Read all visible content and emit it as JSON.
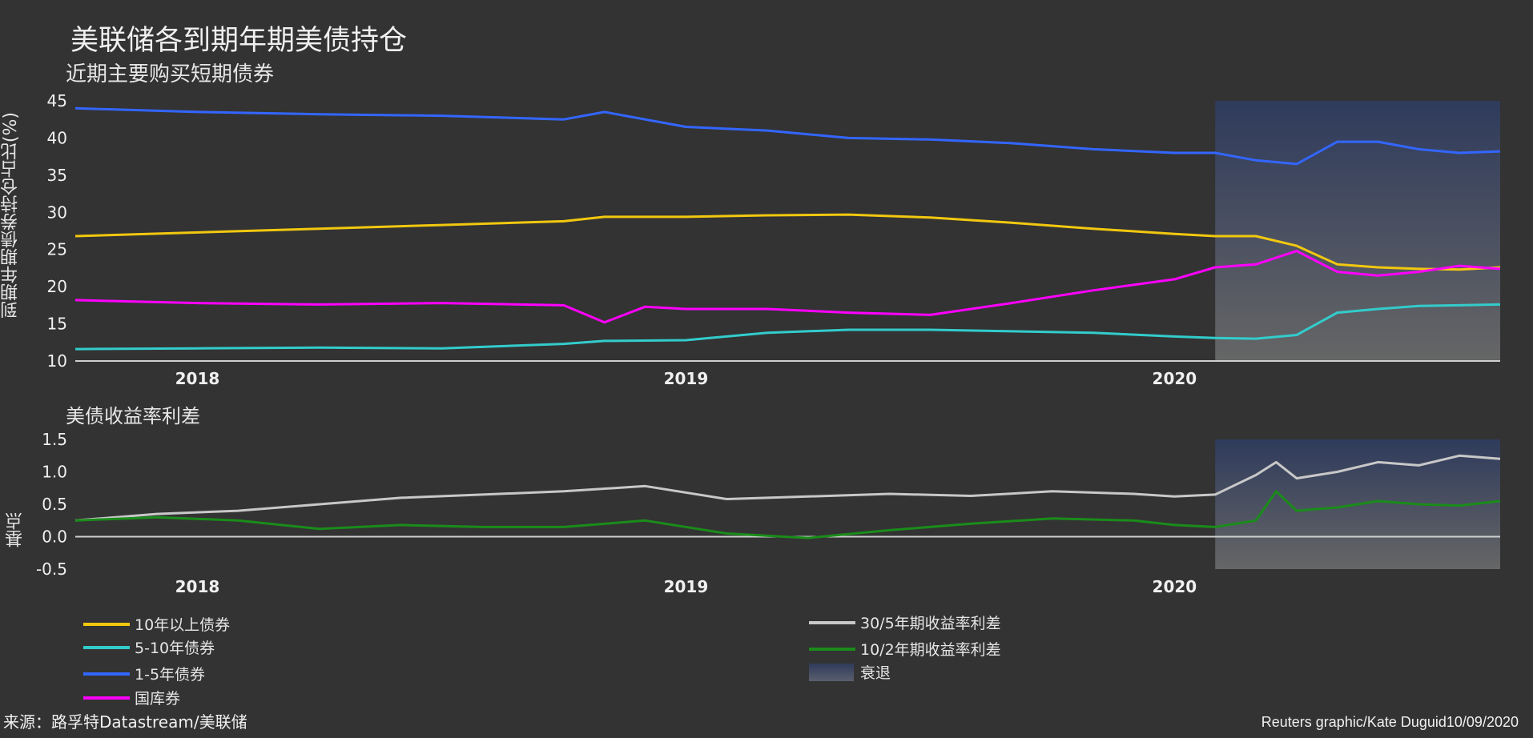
{
  "title": "美联储各到期年期美债持仓",
  "subtitle_top": "近期主要购买短期债券",
  "subtitle_bottom": "美债收益率利差",
  "source": "来源：路孚特Datastream/美联储",
  "credit": "Reuters graphic/Kate Duguid10/09/2020",
  "chart_data": [
    {
      "type": "line",
      "title": "近期主要购买短期债券",
      "ylabel": "到期年期债券持仓占比(%)",
      "ylim": [
        10,
        45
      ],
      "yticks": [
        "45",
        "40",
        "35",
        "30",
        "25",
        "20",
        "15",
        "10"
      ],
      "xticks": [
        "2018",
        "2019",
        "2020"
      ],
      "x_range": [
        "2017-10",
        "2020-09"
      ],
      "recession_shade": {
        "label": "衰退",
        "start": "2020-02"
      },
      "series": [
        {
          "name": "1-5年债券",
          "color": "#3366ff",
          "x": [
            "2017-10",
            "2018-01",
            "2018-04",
            "2018-07",
            "2018-10",
            "2018-11",
            "2019-01",
            "2019-03",
            "2019-05",
            "2019-07",
            "2019-09",
            "2019-11",
            "2020-01",
            "2020-02",
            "2020-03",
            "2020-04",
            "2020-05",
            "2020-06",
            "2020-07",
            "2020-08",
            "2020-09"
          ],
          "values": [
            44.0,
            43.5,
            43.2,
            43.0,
            42.5,
            43.5,
            41.5,
            41.0,
            40.0,
            39.8,
            39.3,
            38.5,
            38.0,
            38.0,
            37.0,
            36.5,
            39.5,
            39.5,
            38.5,
            38.0,
            38.2
          ]
        },
        {
          "name": "10年以上债券",
          "color": "#f2c80f",
          "x": [
            "2017-10",
            "2018-01",
            "2018-04",
            "2018-07",
            "2018-10",
            "2018-11",
            "2019-01",
            "2019-03",
            "2019-05",
            "2019-07",
            "2019-09",
            "2019-11",
            "2020-01",
            "2020-02",
            "2020-03",
            "2020-04",
            "2020-05",
            "2020-06",
            "2020-07",
            "2020-08",
            "2020-09"
          ],
          "values": [
            26.8,
            27.3,
            27.8,
            28.3,
            28.8,
            29.4,
            29.4,
            29.6,
            29.7,
            29.3,
            28.6,
            27.8,
            27.1,
            26.8,
            26.8,
            25.5,
            23.0,
            22.6,
            22.4,
            22.3,
            22.6
          ]
        },
        {
          "name": "国库券",
          "color": "#ff00ff",
          "x": [
            "2017-10",
            "2018-01",
            "2018-04",
            "2018-07",
            "2018-10",
            "2018-11",
            "2018-12",
            "2019-01",
            "2019-03",
            "2019-05",
            "2019-07",
            "2019-09",
            "2019-11",
            "2020-01",
            "2020-02",
            "2020-03",
            "2020-04",
            "2020-05",
            "2020-06",
            "2020-07",
            "2020-08",
            "2020-09"
          ],
          "values": [
            18.2,
            17.8,
            17.6,
            17.8,
            17.5,
            15.2,
            17.3,
            17.0,
            17.0,
            16.5,
            16.2,
            17.8,
            19.5,
            21.0,
            22.6,
            23.0,
            24.8,
            22.0,
            21.5,
            22.0,
            22.8,
            22.4
          ]
        },
        {
          "name": "5-10年债券",
          "color": "#33cccc",
          "x": [
            "2017-10",
            "2018-01",
            "2018-04",
            "2018-07",
            "2018-10",
            "2018-11",
            "2019-01",
            "2019-03",
            "2019-05",
            "2019-07",
            "2019-09",
            "2019-11",
            "2020-01",
            "2020-02",
            "2020-03",
            "2020-04",
            "2020-05",
            "2020-06",
            "2020-07",
            "2020-08",
            "2020-09"
          ],
          "values": [
            11.6,
            11.7,
            11.8,
            11.7,
            12.3,
            12.7,
            12.8,
            13.8,
            14.2,
            14.2,
            14.0,
            13.8,
            13.3,
            13.1,
            13.0,
            13.5,
            16.5,
            17.0,
            17.4,
            17.5,
            17.6
          ]
        }
      ]
    },
    {
      "type": "line",
      "title": "美债收益率利差",
      "ylabel": "基点",
      "ylim": [
        -0.5,
        1.5
      ],
      "yticks": [
        "1.5",
        "1.0",
        "0.5",
        "0.0",
        "-0.5"
      ],
      "xticks": [
        "2018",
        "2019",
        "2020"
      ],
      "x_range": [
        "2017-10",
        "2020-09"
      ],
      "recession_shade": {
        "label": "衰退",
        "start": "2020-02"
      },
      "series": [
        {
          "name": "30/5年期收益率利差",
          "color": "#c8c8c8",
          "x": [
            "2017-10",
            "2017-12",
            "2018-02",
            "2018-04",
            "2018-06",
            "2018-08",
            "2018-10",
            "2018-12",
            "2019-02",
            "2019-04",
            "2019-06",
            "2019-08",
            "2019-10",
            "2019-12",
            "2020-01",
            "2020-02",
            "2020-03",
            "2020-03b",
            "2020-04",
            "2020-05",
            "2020-06",
            "2020-07",
            "2020-08",
            "2020-09"
          ],
          "values": [
            0.25,
            0.35,
            0.4,
            0.5,
            0.6,
            0.65,
            0.7,
            0.78,
            0.58,
            0.62,
            0.66,
            0.63,
            0.7,
            0.66,
            0.62,
            0.65,
            0.95,
            1.15,
            0.9,
            1.0,
            1.15,
            1.1,
            1.25,
            1.2
          ]
        },
        {
          "name": "10/2年期收益率利差",
          "color": "#1a8c1a",
          "x": [
            "2017-10",
            "2017-12",
            "2018-02",
            "2018-04",
            "2018-06",
            "2018-08",
            "2018-10",
            "2018-12",
            "2019-02",
            "2019-04",
            "2019-06",
            "2019-08",
            "2019-10",
            "2019-12",
            "2020-01",
            "2020-02",
            "2020-03",
            "2020-03b",
            "2020-04",
            "2020-05",
            "2020-06",
            "2020-07",
            "2020-08",
            "2020-09"
          ],
          "values": [
            0.25,
            0.3,
            0.25,
            0.12,
            0.18,
            0.15,
            0.15,
            0.25,
            0.05,
            -0.02,
            0.1,
            0.2,
            0.28,
            0.25,
            0.18,
            0.15,
            0.25,
            0.7,
            0.4,
            0.45,
            0.55,
            0.5,
            0.48,
            0.55
          ]
        }
      ]
    }
  ],
  "legend": [
    {
      "label": "10年以上债券",
      "color": "#f2c80f"
    },
    {
      "label": "5-10年债券",
      "color": "#33cccc"
    },
    {
      "label": "1-5年债券",
      "color": "#3366ff"
    },
    {
      "label": "国库券",
      "color": "#ff00ff"
    },
    {
      "label": "30/5年期收益率利差",
      "color": "#c8c8c8"
    },
    {
      "label": "10/2年期收益率利差",
      "color": "#1a8c1a"
    },
    {
      "label": "衰退",
      "color": "#3a4563"
    }
  ]
}
